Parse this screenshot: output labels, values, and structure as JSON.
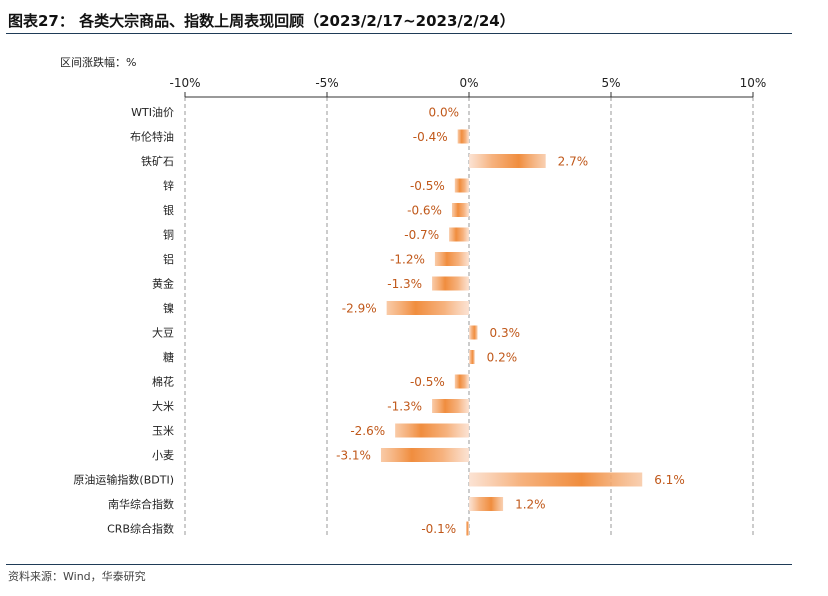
{
  "title": "图表27：  各类大宗商品、指数上周表现回顾（2023/2/17~2023/2/24）",
  "unit_label": "区间涨跌幅：%",
  "source": "资料来源：Wind，华泰研究",
  "colors": {
    "bar": "#f29a4a",
    "label": "#c0581a",
    "rule": "#1f3b57",
    "grid": "#999999"
  },
  "chart_data": {
    "type": "bar",
    "orientation": "horizontal",
    "title": "",
    "xlabel": "",
    "ylabel": "",
    "categories": [
      "WTI油价",
      "布伦特油",
      "铁矿石",
      "锌",
      "银",
      "铜",
      "铝",
      "黄金",
      "镍",
      "大豆",
      "糖",
      "棉花",
      "大米",
      "玉米",
      "小麦",
      "原油运输指数(BDTI)",
      "南华综合指数",
      "CRB综合指数"
    ],
    "values": [
      0.0,
      -0.4,
      2.7,
      -0.5,
      -0.6,
      -0.7,
      -1.2,
      -1.3,
      -2.9,
      0.3,
      0.2,
      -0.5,
      -1.3,
      -2.6,
      -3.1,
      6.1,
      1.2,
      -0.1
    ],
    "value_labels": [
      "0.0%",
      "-0.4%",
      "2.7%",
      "-0.5%",
      "-0.6%",
      "-0.7%",
      "-1.2%",
      "-1.3%",
      "-2.9%",
      "0.3%",
      "0.2%",
      "-0.5%",
      "-1.3%",
      "-2.6%",
      "-3.1%",
      "6.1%",
      "1.2%",
      "-0.1%"
    ],
    "xlim": [
      -10,
      10
    ],
    "xticks": [
      -10,
      -5,
      0,
      5,
      10
    ],
    "xtick_labels": [
      "-10%",
      "-5%",
      "0%",
      "5%",
      "10%"
    ],
    "x_axis_position": "top",
    "grid": "vertical dashed"
  }
}
